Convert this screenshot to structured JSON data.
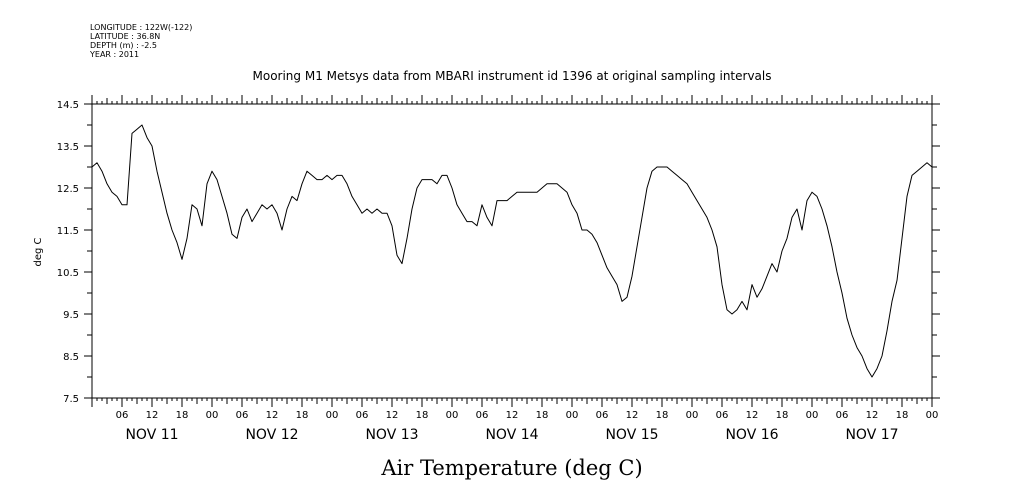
{
  "header": {
    "meta_lines": [
      "LONGITUDE : 122W(-122)",
      "LATITUDE : 36.8N",
      "DEPTH (m) : -2.5",
      "YEAR : 2011"
    ],
    "title": "Mooring M1 Metsys data from MBARI instrument id 1396 at original sampling intervals"
  },
  "chart_data": {
    "type": "line",
    "title": "Mooring M1 Metsys data from MBARI instrument id 1396 at original sampling intervals",
    "xlabel": "Air Temperature (deg C)",
    "ylabel": "deg C",
    "ylim": [
      7.5,
      14.5
    ],
    "yticks": [
      "7.5",
      "8.5",
      "9.5",
      "10.5",
      "11.5",
      "12.5",
      "13.5",
      "14.5"
    ],
    "xlim_hours": [
      0,
      168
    ],
    "x_unit": "hours from NOV 11 00",
    "hour_tick_labels": [
      "06",
      "12",
      "18",
      "00",
      "06",
      "12",
      "18",
      "00",
      "06",
      "12",
      "18",
      "00",
      "06",
      "12",
      "18",
      "00",
      "06",
      "12",
      "18",
      "00",
      "06",
      "12",
      "18",
      "00",
      "06",
      "12",
      "18",
      "00"
    ],
    "day_labels": [
      "NOV 11",
      "NOV 12",
      "NOV 13",
      "NOV 14",
      "NOV 15",
      "NOV 16",
      "NOV 17"
    ],
    "grid": false,
    "series": [
      {
        "name": "Air Temperature",
        "x": [
          0,
          1,
          2,
          3,
          4,
          5,
          6,
          7,
          8,
          9,
          10,
          11,
          12,
          13,
          14,
          15,
          16,
          17,
          18,
          19,
          20,
          21,
          22,
          23,
          24,
          25,
          26,
          27,
          28,
          29,
          30,
          31,
          32,
          33,
          34,
          35,
          36,
          37,
          38,
          39,
          40,
          41,
          42,
          43,
          44,
          45,
          46,
          47,
          48,
          49,
          50,
          51,
          52,
          53,
          54,
          55,
          56,
          57,
          58,
          59,
          60,
          61,
          62,
          63,
          64,
          65,
          66,
          67,
          68,
          69,
          70,
          71,
          72,
          73,
          74,
          75,
          76,
          77,
          78,
          79,
          80,
          81,
          82,
          83,
          84,
          85,
          86,
          87,
          88,
          89,
          90,
          91,
          92,
          93,
          94,
          95,
          96,
          97,
          98,
          99,
          100,
          101,
          102,
          103,
          104,
          105,
          106,
          107,
          108,
          109,
          110,
          111,
          112,
          113,
          114,
          115,
          116,
          117,
          118,
          119,
          120,
          121,
          122,
          123,
          124,
          125,
          126,
          127,
          128,
          129,
          130,
          131,
          132,
          133,
          134,
          135,
          136,
          137,
          138,
          139,
          140,
          141,
          142,
          143,
          144,
          145,
          146,
          147,
          148,
          149,
          150,
          151,
          152,
          153,
          154,
          155,
          156,
          157,
          158,
          159,
          160,
          161,
          162,
          163,
          164,
          165,
          166,
          167,
          168
        ],
        "y": [
          13.0,
          13.1,
          12.9,
          12.6,
          12.4,
          12.3,
          12.1,
          12.1,
          13.8,
          13.9,
          14.0,
          13.7,
          13.5,
          12.9,
          12.4,
          11.9,
          11.5,
          11.2,
          10.8,
          11.3,
          12.1,
          12.0,
          11.6,
          12.6,
          12.9,
          12.7,
          12.3,
          11.9,
          11.4,
          11.3,
          11.8,
          12.0,
          11.7,
          11.9,
          12.1,
          12.0,
          12.1,
          11.9,
          11.5,
          12.0,
          12.3,
          12.2,
          12.6,
          12.9,
          12.8,
          12.7,
          12.7,
          12.8,
          12.7,
          12.8,
          12.8,
          12.6,
          12.3,
          12.1,
          11.9,
          12.0,
          11.9,
          12.0,
          11.9,
          11.9,
          11.6,
          10.9,
          10.7,
          11.3,
          12.0,
          12.5,
          12.7,
          12.7,
          12.7,
          12.6,
          12.8,
          12.8,
          12.5,
          12.1,
          11.9,
          11.7,
          11.7,
          11.6,
          12.1,
          11.8,
          11.6,
          12.2,
          12.2,
          12.2,
          12.3,
          12.4,
          12.4,
          12.4,
          12.4,
          12.4,
          12.5,
          12.6,
          12.6,
          12.6,
          12.5,
          12.4,
          12.1,
          11.9,
          11.5,
          11.5,
          11.4,
          11.2,
          10.9,
          10.6,
          10.4,
          10.2,
          9.8,
          9.9,
          10.4,
          11.1,
          11.8,
          12.5,
          12.9,
          13.0,
          13.0,
          13.0,
          12.9,
          12.8,
          12.7,
          12.6,
          12.4,
          12.2,
          12.0,
          11.8,
          11.5,
          11.1,
          10.2,
          9.6,
          9.5,
          9.6,
          9.8,
          9.6,
          10.2,
          9.9,
          10.1,
          10.4,
          10.7,
          10.5,
          11.0,
          11.3,
          11.8,
          12.0,
          11.5,
          12.2,
          12.4,
          12.3,
          12.0,
          11.6,
          11.1,
          10.5,
          10.0,
          9.4,
          9.0,
          8.7,
          8.5,
          8.2,
          8.0,
          8.2,
          8.5,
          9.1,
          9.8,
          10.3,
          11.3,
          12.3,
          12.8,
          12.9,
          13.0,
          13.1,
          13.0
        ]
      }
    ]
  }
}
